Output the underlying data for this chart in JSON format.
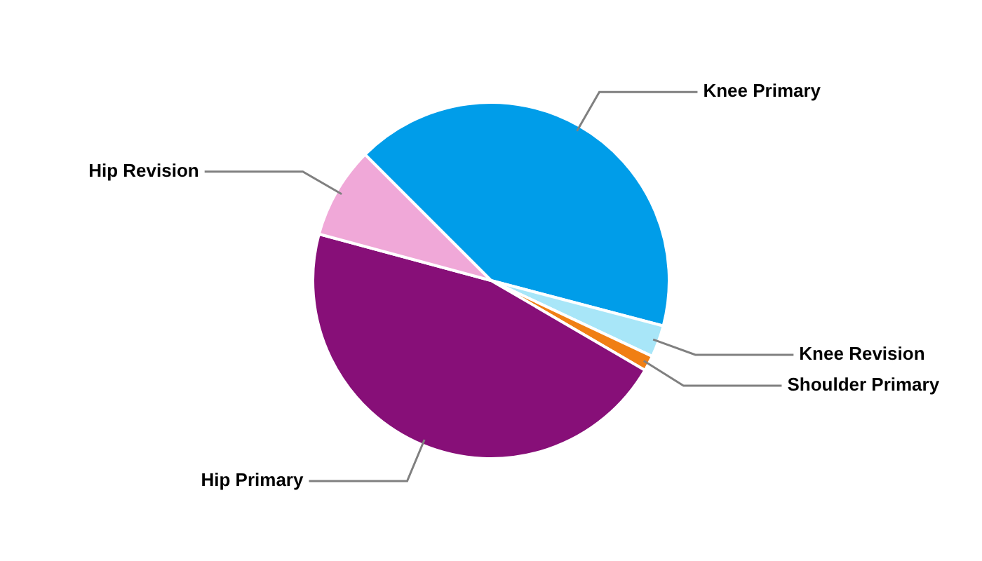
{
  "chart_data": {
    "type": "pie",
    "categories": [
      "Knee Primary",
      "Knee Revision",
      "Shoulder Primary",
      "Hip Primary",
      "Hip Revision"
    ],
    "values": [
      41.6,
      2.9,
      1.4,
      45.8,
      8.3
    ],
    "colors": [
      "#009de9",
      "#a8e6f8",
      "#f07f14",
      "#870f78",
      "#f0a8d8"
    ],
    "legend": false
  }
}
